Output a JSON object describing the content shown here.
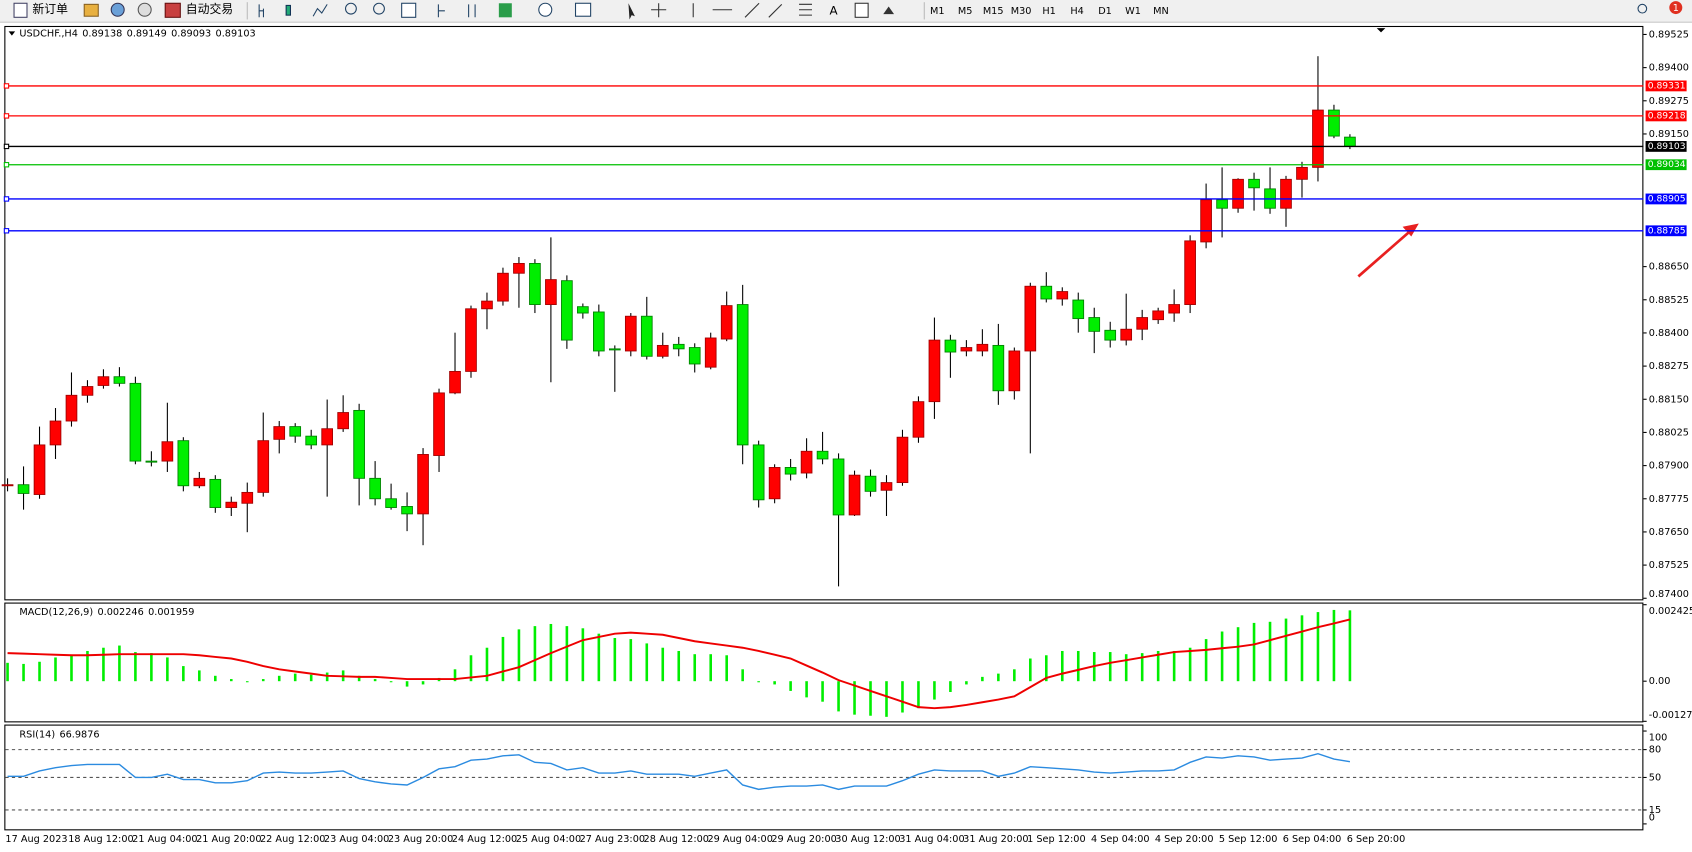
{
  "toolbar": {
    "buttons": [
      "新订单",
      "自动交易"
    ],
    "timeframes": [
      "M1",
      "M5",
      "M15",
      "M30",
      "H1",
      "H4",
      "D1",
      "W1",
      "MN"
    ],
    "notifications": 1
  },
  "chart_data": [
    {
      "type": "candlestick",
      "title": "USDCHF.,H4",
      "up_color": "#ff0000",
      "down_color": "#00ee00",
      "current_line_color": "#000000",
      "categories": [
        "17 Aug 2023",
        null,
        null,
        null,
        "18 Aug 12:00",
        null,
        null,
        null,
        "21 Aug 04:00",
        null,
        null,
        null,
        "21 Aug 20:00",
        null,
        null,
        null,
        "22 Aug 12:00",
        null,
        null,
        null,
        "23 Aug 04:00",
        null,
        null,
        null,
        "23 Aug 20:00",
        null,
        null,
        null,
        "24 Aug 12:00",
        null,
        null,
        null,
        "25 Aug 04:00",
        null,
        null,
        null,
        "27 Aug 23:00",
        null,
        null,
        null,
        "28 Aug 12:00",
        null,
        null,
        null,
        "29 Aug 04:00",
        null,
        null,
        null,
        "29 Aug 20:00",
        null,
        null,
        null,
        "30 Aug 12:00",
        null,
        null,
        null,
        "31 Aug 04:00",
        null,
        null,
        null,
        "31 Aug 20:00",
        null,
        null,
        null,
        "1 Sep 12:00",
        null,
        null,
        null,
        "4 Sep 04:00",
        null,
        null,
        null,
        "4 Sep 20:00",
        null,
        null,
        null,
        "5 Sep 12:00",
        null,
        null,
        null,
        "6 Sep 04:00",
        null,
        null,
        null,
        "6 Sep 20:00"
      ],
      "open": [
        0.87824,
        0.87828,
        0.87791,
        0.87978,
        0.88068,
        0.88165,
        0.88202,
        0.88235,
        0.8821,
        0.87917,
        0.87917,
        0.87994,
        0.87824,
        0.87848,
        0.87742,
        0.87758,
        0.87799,
        0.87999,
        0.88047,
        0.88011,
        0.87978,
        0.88039,
        0.88108,
        0.87852,
        0.87775,
        0.87746,
        0.87718,
        0.87938,
        0.88174,
        0.88255,
        0.88491,
        0.8852,
        0.88625,
        0.88662,
        0.88507,
        0.88597,
        0.88499,
        0.88479,
        0.8834,
        0.88332,
        0.88463,
        0.88312,
        0.88357,
        0.88345,
        0.88271,
        0.88377,
        0.88507,
        0.87978,
        0.87775,
        0.87893,
        0.87872,
        0.87954,
        0.87925,
        0.87714,
        0.8786,
        0.87807,
        0.87836,
        0.88007,
        0.88141,
        0.88373,
        0.88332,
        0.88332,
        0.88353,
        0.88182,
        0.88332,
        0.88576,
        0.88528,
        0.88524,
        0.88458,
        0.8841,
        0.88373,
        0.88414,
        0.8845,
        0.88475,
        0.88507,
        0.88743,
        0.88902,
        0.8887,
        0.88979,
        0.88943,
        0.8887,
        0.88979,
        0.89024,
        0.8924,
        0.89138
      ],
      "high": [
        0.87852,
        0.87897,
        0.88047,
        0.88117,
        0.88251,
        0.88222,
        0.88263,
        0.88271,
        0.88235,
        0.87954,
        0.88137,
        0.88007,
        0.87876,
        0.87864,
        0.87783,
        0.87836,
        0.881,
        0.88068,
        0.8806,
        0.88035,
        0.88149,
        0.88165,
        0.88133,
        0.87917,
        0.87832,
        0.87799,
        0.87966,
        0.8819,
        0.88401,
        0.88503,
        0.88552,
        0.88646,
        0.88686,
        0.88678,
        0.8876,
        0.88617,
        0.88511,
        0.88507,
        0.88353,
        0.88475,
        0.88536,
        0.88401,
        0.88385,
        0.88361,
        0.88401,
        0.88556,
        0.88581,
        0.87994,
        0.87905,
        0.87925,
        0.88003,
        0.88027,
        0.87946,
        0.87881,
        0.87885,
        0.87864,
        0.88035,
        0.88161,
        0.88458,
        0.88393,
        0.88373,
        0.88414,
        0.88434,
        0.88345,
        0.88589,
        0.88629,
        0.88572,
        0.88552,
        0.88495,
        0.88442,
        0.88548,
        0.88487,
        0.88495,
        0.88564,
        0.88768,
        0.88963,
        0.89024,
        0.88983,
        0.89004,
        0.89024,
        0.88992,
        0.89045,
        0.89443,
        0.8926,
        0.89149
      ],
      "low": [
        0.87803,
        0.87734,
        0.87775,
        0.87925,
        0.88047,
        0.88137,
        0.8819,
        0.88198,
        0.87905,
        0.87897,
        0.87876,
        0.87803,
        0.87815,
        0.87722,
        0.8771,
        0.87649,
        0.87783,
        0.87946,
        0.87986,
        0.87962,
        0.87783,
        0.88027,
        0.8775,
        0.8775,
        0.87734,
        0.87653,
        0.876,
        0.87876,
        0.88169,
        0.88231,
        0.88414,
        0.88503,
        0.88495,
        0.88475,
        0.88214,
        0.8834,
        0.88454,
        0.88312,
        0.88178,
        0.88312,
        0.883,
        0.88304,
        0.88312,
        0.88251,
        0.88263,
        0.88369,
        0.87905,
        0.87742,
        0.87758,
        0.87844,
        0.87852,
        0.87905,
        0.87445,
        0.8771,
        0.87783,
        0.8771,
        0.87824,
        0.87986,
        0.88076,
        0.88231,
        0.88312,
        0.88312,
        0.88129,
        0.88149,
        0.87946,
        0.88515,
        0.88503,
        0.88401,
        0.88324,
        0.88345,
        0.88353,
        0.88373,
        0.88434,
        0.88442,
        0.88475,
        0.88719,
        0.8876,
        0.88853,
        0.88861,
        0.88849,
        0.888,
        0.8891,
        0.88971,
        0.89134,
        0.89093
      ],
      "close": [
        0.87828,
        0.87795,
        0.87978,
        0.88068,
        0.88165,
        0.88198,
        0.88235,
        0.8821,
        0.87917,
        0.87913,
        0.8799,
        0.87824,
        0.87852,
        0.87742,
        0.87762,
        0.87799,
        0.87994,
        0.88047,
        0.88011,
        0.87978,
        0.88039,
        0.881,
        0.87852,
        0.87775,
        0.87742,
        0.87718,
        0.87942,
        0.88174,
        0.88255,
        0.88491,
        0.8852,
        0.88625,
        0.88662,
        0.88507,
        0.88601,
        0.88373,
        0.88475,
        0.88332,
        0.88336,
        0.88463,
        0.88312,
        0.88353,
        0.8834,
        0.88283,
        0.88381,
        0.88503,
        0.87978,
        0.87771,
        0.87893,
        0.87868,
        0.87954,
        0.87925,
        0.87714,
        0.87864,
        0.87803,
        0.87836,
        0.88007,
        0.88141,
        0.88373,
        0.88328,
        0.88345,
        0.88357,
        0.88182,
        0.88332,
        0.88576,
        0.88528,
        0.88556,
        0.88454,
        0.88406,
        0.88373,
        0.88414,
        0.88458,
        0.88483,
        0.88507,
        0.88747,
        0.88902,
        0.8887,
        0.88979,
        0.88947,
        0.8887,
        0.88979,
        0.89024,
        0.8924,
        0.89142,
        0.89103
      ],
      "ylim": [
        0.87392,
        0.89553
      ],
      "yticks": [
        0.89525,
        {
          "value": 0.894,
          "label": "0.89400"
        },
        0.89275,
        {
          "value": 0.8915,
          "label": "0.89150"
        },
        {
          "value": 0.8865,
          "label": "0.88650"
        },
        0.88525,
        {
          "value": 0.884,
          "label": "0.88400"
        },
        0.88275,
        {
          "value": 0.8815,
          "label": "0.88150"
        },
        0.88025,
        {
          "value": 0.879,
          "label": "0.87900"
        },
        0.87775,
        {
          "value": 0.8765,
          "label": "0.87650"
        },
        0.87525,
        {
          "value": 0.874,
          "label": "0.87400"
        }
      ],
      "price_lines": [
        {
          "value": 0.89331,
          "color": "#ff0000"
        },
        {
          "value": 0.89218,
          "color": "#ff0000"
        },
        {
          "value": 0.89034,
          "color": "#00c000"
        },
        {
          "value": 0.88905,
          "color": "#0000ff"
        },
        {
          "value": 0.88785,
          "color": "#0000ff"
        }
      ]
    },
    {
      "type": "macd",
      "title": "MACD(12,26,9)",
      "ylim": [
        -0.001272,
        0.002425
      ],
      "yticks": [
        0.002425,
        {
          "value": 0,
          "label": "0.00"
        },
        -0.001272
      ],
      "series": [
        {
          "style": "histogram",
          "color": "#00ee00",
          "values": [
            0.000582,
            0.000548,
            0.000616,
            0.000753,
            0.000822,
            0.000958,
            0.001061,
            0.00113,
            0.000924,
            0.00089,
            0.000753,
            0.000479,
            0.000342,
            0.000171,
            6.8e-05,
            -3.4e-05,
            6.8e-05,
            0.000171,
            0.00024,
            0.000205,
            0.000274,
            0.000342,
            0.000171,
            6.8e-05,
            -3.4e-05,
            -0.000171,
            -0.000103,
            0.000103,
            0.000377,
            0.000822,
            0.001061,
            0.001403,
            0.001643,
            0.001746,
            0.001814,
            0.001746,
            0.001677,
            0.001506,
            0.001369,
            0.001335,
            0.001198,
            0.001061,
            0.000958,
            0.000856,
            0.000856,
            0.000822,
            0.000377,
            -3.4e-05,
            -0.000103,
            -0.000308,
            -0.000513,
            -0.00065,
            -0.000958,
            -0.001061,
            -0.001095,
            -0.00113,
            -0.000993,
            -0.000856,
            -0.000582,
            -0.000342,
            -0.000103,
            0.000137,
            0.00024,
            0.000377,
            0.000719,
            0.000822,
            0.000958,
            0.000958,
            0.000924,
            0.000924,
            0.000856,
            0.00089,
            0.000958,
            0.000958,
            0.001061,
            0.001335,
            0.001575,
            0.001712,
            0.001848,
            0.001883,
            0.001985,
            0.002088,
            0.002191,
            0.002259,
            0.002246
          ]
        },
        {
          "style": "line",
          "color": "#ee0000",
          "values": [
            0.00089,
            0.000873,
            0.000856,
            0.000839,
            0.000822,
            0.000822,
            0.000839,
            0.000856,
            0.000856,
            0.000856,
            0.000856,
            0.000856,
            0.000822,
            0.00077,
            0.000719,
            0.000616,
            0.000479,
            0.000377,
            0.000308,
            0.00024,
            0.000171,
            0.000154,
            0.000137,
            0.000137,
            0.000103,
            6.8e-05,
            6.8e-05,
            6.8e-05,
            6.8e-05,
            0.00012,
            0.000171,
            0.000308,
            0.000445,
            0.000667,
            0.00089,
            0.001095,
            0.001301,
            0.001403,
            0.001506,
            0.00154,
            0.001506,
            0.001472,
            0.001369,
            0.001267,
            0.001198,
            0.00113,
            0.001061,
            0.000958,
            0.000839,
            0.000719,
            0.000496,
            0.000274,
            3.4e-05,
            -0.000137,
            -0.000308,
            -0.000479,
            -0.00065,
            -0.000822,
            -0.000856,
            -0.000822,
            -0.000753,
            -0.000667,
            -0.000582,
            -0.000479,
            -0.000188,
            0.000103,
            0.00024,
            0.000359,
            0.000479,
            0.000582,
            0.000667,
            0.000753,
            0.000839,
            0.000924,
            0.000958,
            0.000993,
            0.001044,
            0.001095,
            0.001164,
            0.001301,
            0.001438,
            0.001575,
            0.001712,
            0.001831,
            0.001959
          ]
        }
      ]
    },
    {
      "type": "line",
      "title": "RSI(14)",
      "color": "#2b8be0",
      "ylim": [
        0,
        100
      ],
      "yticks": [
        100,
        80,
        50,
        15,
        0
      ],
      "values": [
        51.2,
        51.2,
        57.0,
        60.5,
        62.8,
        64.0,
        64.0,
        64.0,
        50.0,
        50.0,
        53.5,
        47.7,
        47.7,
        44.2,
        44.2,
        46.5,
        54.7,
        55.8,
        54.7,
        54.7,
        55.8,
        57.0,
        48.8,
        45.3,
        43.0,
        41.9,
        50.0,
        59.3,
        61.6,
        68.6,
        69.8,
        73.3,
        74.4,
        66.3,
        65.1,
        58.1,
        60.5,
        54.7,
        54.7,
        57.0,
        53.5,
        53.5,
        53.5,
        51.2,
        54.7,
        58.1,
        41.9,
        37.2,
        39.5,
        40.7,
        40.7,
        41.9,
        37.2,
        40.7,
        40.7,
        40.7,
        46.5,
        53.5,
        58.1,
        57.0,
        57.0,
        57.0,
        51.2,
        54.7,
        61.6,
        60.5,
        59.3,
        58.1,
        55.8,
        54.7,
        55.8,
        57.0,
        57.0,
        58.1,
        66.3,
        72.1,
        70.9,
        73.3,
        72.1,
        68.6,
        69.8,
        70.9,
        75.6,
        69.8,
        66.9876
      ]
    }
  ]
}
